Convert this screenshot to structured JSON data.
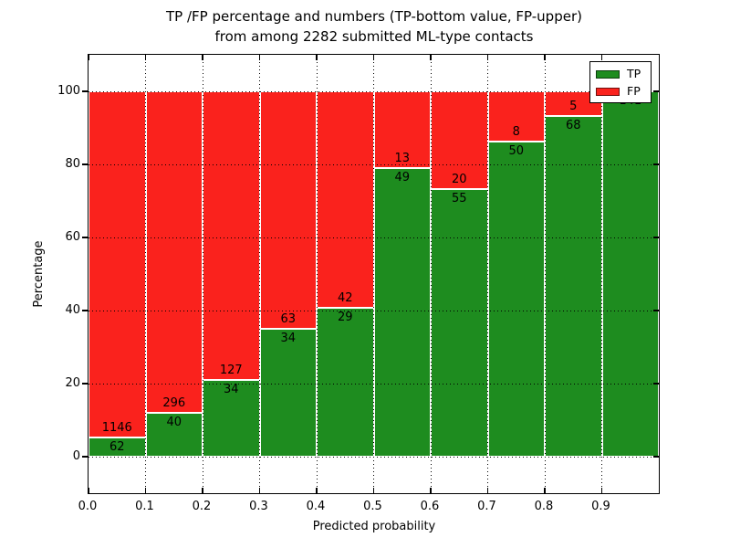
{
  "title": {
    "line1": "TP /FP percentage and numbers (TP-bottom value, FP-upper)",
    "line2": "from among 2282 submitted ML-type contacts"
  },
  "axes": {
    "xlabel": "Predicted probability",
    "ylabel": "Percentage",
    "x_tick_labels": [
      "0.0",
      "0.1",
      "0.2",
      "0.3",
      "0.4",
      "0.5",
      "0.6",
      "0.7",
      "0.8",
      "0.9"
    ],
    "x_tick_values": [
      0,
      0.1,
      0.2,
      0.3,
      0.4,
      0.5,
      0.6,
      0.7,
      0.8,
      0.9
    ],
    "y_tick_labels": [
      "0",
      "20",
      "40",
      "60",
      "80",
      "100"
    ],
    "y_tick_values": [
      0,
      20,
      40,
      60,
      80,
      100
    ]
  },
  "legend": {
    "position": "upper right",
    "items": [
      {
        "label": "TP",
        "color": "#1e8c1f"
      },
      {
        "label": "FP",
        "color": "#fa221d"
      }
    ]
  },
  "colors": {
    "tp": "#1e8c1f",
    "fp": "#fa221d",
    "grid": "#000000",
    "spine": "#000000",
    "background": "#ffffff"
  },
  "chart_data": {
    "type": "bar",
    "stacked": true,
    "orientation": "vertical",
    "title": "TP /FP percentage and numbers (TP-bottom value, FP-upper) from among 2282 submitted ML-type contacts",
    "xlabel": "Predicted probability",
    "ylabel": "Percentage",
    "bin_edges": [
      0.0,
      0.1,
      0.2,
      0.3,
      0.4,
      0.5,
      0.6,
      0.7,
      0.8,
      0.9,
      1.0
    ],
    "categories": [
      "0.0-0.1",
      "0.1-0.2",
      "0.2-0.3",
      "0.3-0.4",
      "0.4-0.5",
      "0.5-0.6",
      "0.6-0.7",
      "0.7-0.8",
      "0.8-0.9",
      "0.9-1.0"
    ],
    "series": [
      {
        "name": "TP",
        "color": "#1e8c1f",
        "counts": [
          62,
          40,
          34,
          34,
          29,
          49,
          55,
          50,
          68,
          141
        ],
        "percent": [
          5.13,
          11.9,
          21.12,
          35.05,
          40.85,
          79.03,
          73.33,
          86.21,
          93.15,
          100.0
        ]
      },
      {
        "name": "FP",
        "color": "#fa221d",
        "counts": [
          1146,
          296,
          127,
          63,
          42,
          13,
          20,
          8,
          5,
          0
        ],
        "percent": [
          94.87,
          88.1,
          78.88,
          64.95,
          59.15,
          20.97,
          26.67,
          13.79,
          6.85,
          0.0
        ]
      }
    ],
    "total_contacts": 2282,
    "xlim": [
      0.0,
      1.0
    ],
    "ylim": [
      -10,
      110
    ],
    "grid": true,
    "grid_style": "dotted",
    "legend_position": "upper right"
  }
}
